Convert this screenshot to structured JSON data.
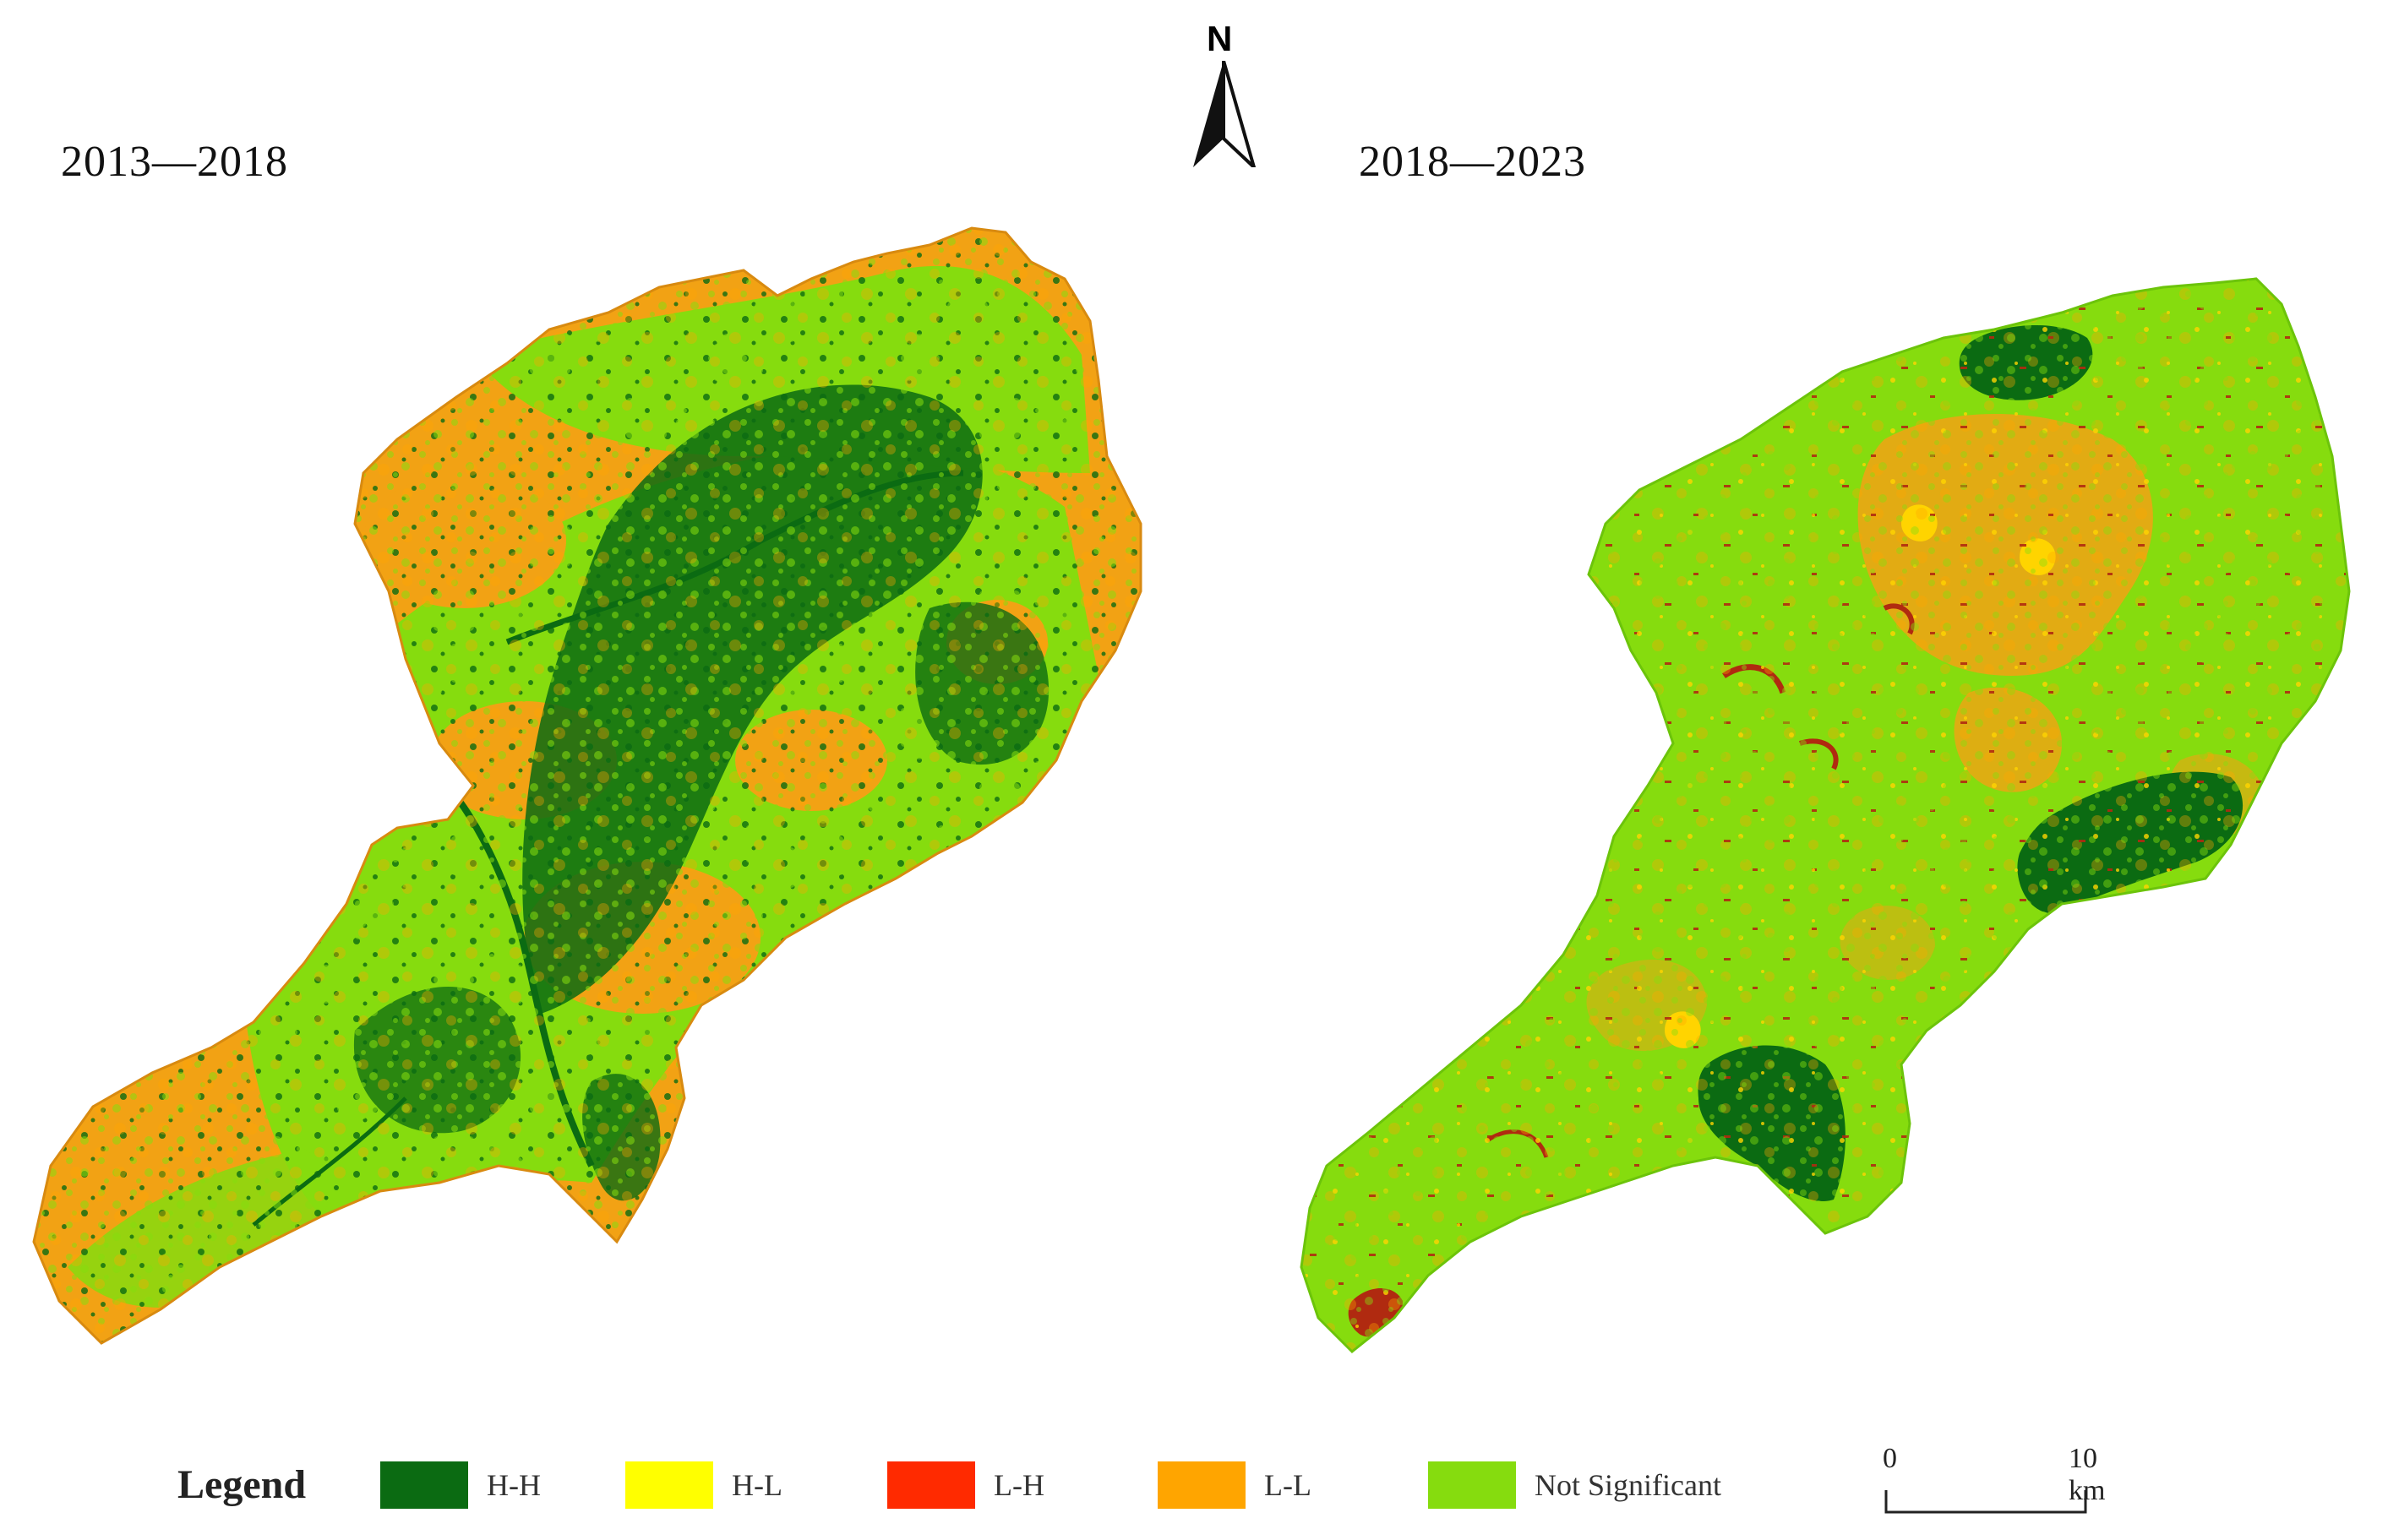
{
  "north": {
    "label": "N",
    "icon": "north-arrow-icon"
  },
  "panels": [
    {
      "title": "2013—2018"
    },
    {
      "title": "2018—2023"
    }
  ],
  "legend": {
    "title": "Legend",
    "items": [
      {
        "label": "H-H",
        "color": "#0b6b12"
      },
      {
        "label": "H-L",
        "color": "#ffff00"
      },
      {
        "label": "L-H",
        "color": "#ff2a00"
      },
      {
        "label": "L-L",
        "color": "#ffa500"
      },
      {
        "label": "Not Significant",
        "color": "#86dc0e"
      }
    ]
  },
  "scale_bar": {
    "start_label": "0",
    "end_label": "10 km"
  }
}
